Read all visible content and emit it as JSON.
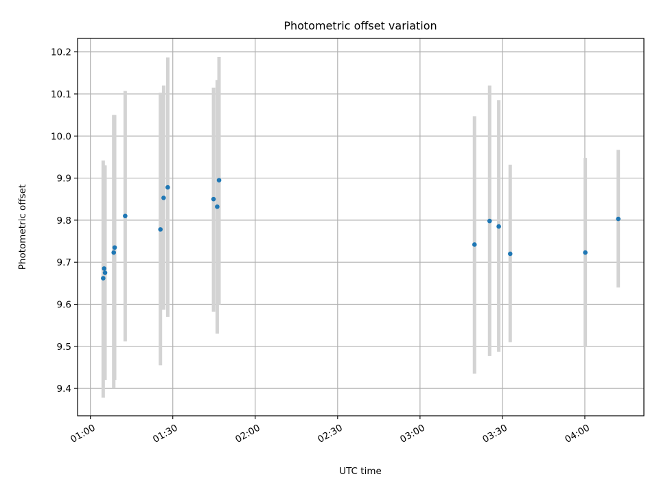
{
  "chart_data": {
    "type": "scatter",
    "title": "Photometric offset variation",
    "xlabel": "UTC time",
    "ylabel": "Photometric offset",
    "xlim": [
      "00:55:20",
      "04:21:30"
    ],
    "ylim": [
      9.335,
      10.232
    ],
    "grid": true,
    "x_ticks": [
      "01:00",
      "01:30",
      "02:00",
      "02:30",
      "03:00",
      "03:30",
      "04:00"
    ],
    "y_ticks": [
      "9.4",
      "9.5",
      "9.6",
      "9.7",
      "9.8",
      "9.9",
      "10.0",
      "10.1",
      "10.2"
    ],
    "point_color": "#1f77b4",
    "errorbar_color": "#d3d3d3",
    "points": [
      {
        "x": "01:04:40",
        "y": 9.662,
        "ylo": 9.378,
        "yhi": 9.942
      },
      {
        "x": "01:05:00",
        "y": 9.685,
        "ylo": 9.44,
        "yhi": 9.93
      },
      {
        "x": "01:05:20",
        "y": 9.675,
        "ylo": 9.42,
        "yhi": 9.93
      },
      {
        "x": "01:08:30",
        "y": 9.723,
        "ylo": 9.4,
        "yhi": 10.05
      },
      {
        "x": "01:08:50",
        "y": 9.735,
        "ylo": 9.42,
        "yhi": 10.05
      },
      {
        "x": "01:12:40",
        "y": 9.81,
        "ylo": 9.512,
        "yhi": 10.107
      },
      {
        "x": "01:25:30",
        "y": 9.778,
        "ylo": 9.455,
        "yhi": 10.103
      },
      {
        "x": "01:26:40",
        "y": 9.853,
        "ylo": 9.587,
        "yhi": 10.12
      },
      {
        "x": "01:28:10",
        "y": 9.878,
        "ylo": 9.57,
        "yhi": 10.187
      },
      {
        "x": "01:44:50",
        "y": 9.85,
        "ylo": 9.582,
        "yhi": 10.115
      },
      {
        "x": "01:46:10",
        "y": 9.832,
        "ylo": 9.53,
        "yhi": 10.133
      },
      {
        "x": "01:46:50",
        "y": 9.895,
        "ylo": 9.6,
        "yhi": 10.188
      },
      {
        "x": "03:19:50",
        "y": 9.742,
        "ylo": 9.435,
        "yhi": 10.047
      },
      {
        "x": "03:25:20",
        "y": 9.798,
        "ylo": 9.477,
        "yhi": 10.12
      },
      {
        "x": "03:28:40",
        "y": 9.785,
        "ylo": 9.487,
        "yhi": 10.085
      },
      {
        "x": "03:32:50",
        "y": 9.72,
        "ylo": 9.51,
        "yhi": 9.932
      },
      {
        "x": "04:00:10",
        "y": 9.723,
        "ylo": 9.498,
        "yhi": 9.948
      },
      {
        "x": "04:12:10",
        "y": 9.803,
        "ylo": 9.64,
        "yhi": 9.967
      }
    ]
  }
}
